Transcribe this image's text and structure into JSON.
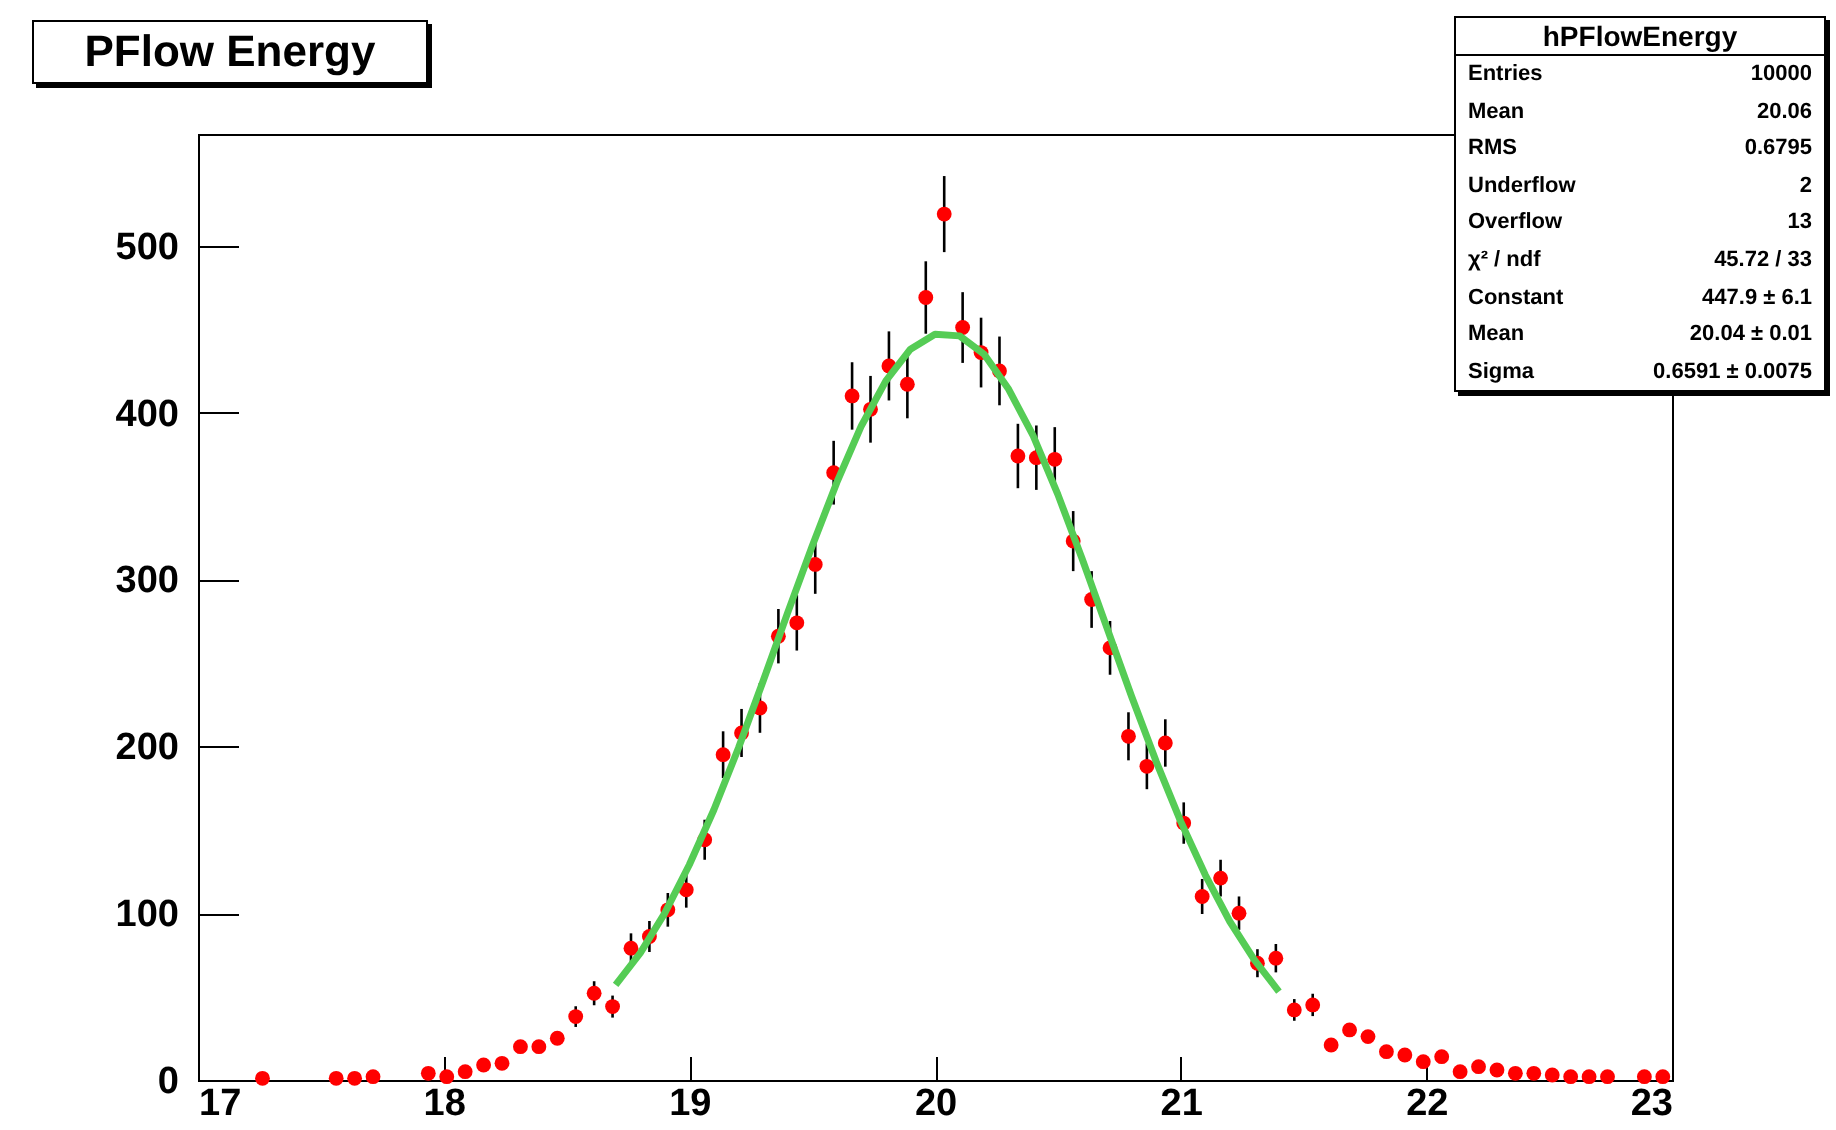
{
  "chart_data": {
    "type": "scatter",
    "title": "PFlow Energy",
    "annotations": [
      "hPFlowEnergy",
      "Entries",
      "10000",
      "Mean",
      "20.06",
      "RMS",
      "0.6795",
      "Underflow",
      "2",
      "Overflow",
      "13",
      "χ² / ndf",
      "45.72 / 33",
      "Constant",
      "447.9 ± 6.1",
      "Mean",
      "20.04 ± 0.01",
      "Sigma",
      "0.6591 ± 0.0075"
    ],
    "xlim": [
      17,
      23
    ],
    "xticks": [
      17,
      18,
      19,
      20,
      21,
      22,
      23
    ],
    "ylim": [
      0,
      567
    ],
    "yticks": [
      0,
      100,
      200,
      300,
      400,
      500
    ],
    "grid": false,
    "marker": "circle",
    "series": [
      {
        "color": "#ff0000",
        "x": [
          17.2625,
          17.5625,
          17.6375,
          17.7125,
          17.9375,
          18.0125,
          18.0875,
          18.1625,
          18.2375,
          18.3125,
          18.3875,
          18.4625,
          18.5375,
          18.6125,
          18.6875,
          18.7625,
          18.8375,
          18.9125,
          18.9875,
          19.0625,
          19.1375,
          19.2125,
          19.2875,
          19.3625,
          19.4375,
          19.5125,
          19.5875,
          19.6625,
          19.7375,
          19.8125,
          19.8875,
          19.9625,
          20.0375,
          20.1125,
          20.1875,
          20.2625,
          20.3375,
          20.4125,
          20.4875,
          20.5625,
          20.6375,
          20.7125,
          20.7875,
          20.8625,
          20.9375,
          21.0125,
          21.0875,
          21.1625,
          21.2375,
          21.3125,
          21.3875,
          21.4625,
          21.5375,
          21.6125,
          21.6875,
          21.7625,
          21.8375,
          21.9125,
          21.9875,
          22.0625,
          22.1375,
          22.2125,
          22.2875,
          22.3625,
          22.4375,
          22.5125,
          22.5875,
          22.6625,
          22.7375,
          22.8875,
          22.9625
        ],
        "values": [
          1,
          1,
          1,
          2,
          4,
          2,
          5,
          9,
          10,
          20,
          20,
          25,
          38,
          52,
          44,
          79,
          86,
          102,
          114,
          144,
          195,
          208,
          223,
          266,
          274,
          309,
          364,
          410,
          402,
          428,
          417,
          469,
          519,
          451,
          436,
          425,
          374,
          373,
          372,
          323,
          288,
          259,
          206,
          188,
          202,
          154,
          110,
          121,
          100,
          70,
          73,
          42,
          45,
          21,
          30,
          26,
          17,
          15,
          11,
          14,
          5,
          8,
          6,
          4,
          4,
          3,
          2,
          2,
          2,
          2,
          2
        ],
        "errors": [
          null,
          null,
          null,
          null,
          null,
          null,
          null,
          null,
          null,
          null,
          null,
          null,
          6.2,
          7.2,
          6.6,
          8.9,
          9.3,
          10.1,
          10.7,
          12,
          14,
          14.4,
          14.9,
          16.3,
          16.6,
          17.6,
          19.1,
          20.2,
          20,
          20.7,
          20.4,
          21.7,
          22.8,
          21.2,
          20.9,
          20.6,
          19.3,
          19.3,
          19.3,
          18,
          17,
          16.1,
          14.4,
          13.7,
          14.2,
          12.4,
          10.5,
          11,
          10,
          8.4,
          8.5,
          6.5,
          6.7,
          null,
          null,
          null,
          null,
          null,
          null,
          null,
          null,
          null,
          null,
          null,
          null,
          null,
          null,
          null,
          null,
          null,
          null
        ]
      },
      {
        "type": "line",
        "color": "#55cc55",
        "line_style": "solid",
        "marker": "none",
        "x": [
          18.7,
          18.8,
          18.9,
          19.0,
          19.1,
          19.2,
          19.3,
          19.4,
          19.5,
          19.6,
          19.7,
          19.8,
          19.9,
          20.0,
          20.1,
          20.2,
          20.3,
          20.4,
          20.5,
          20.6,
          20.7,
          20.8,
          20.9,
          21.0,
          21.1,
          21.2,
          21.3,
          21.4
        ],
        "values": [
          57,
          76,
          100,
          129,
          162,
          199,
          239,
          280,
          320,
          358,
          392,
          419,
          438,
          447,
          446,
          435,
          414,
          386,
          351,
          312,
          271,
          230,
          191,
          155,
          123,
          95,
          72,
          53
        ]
      }
    ]
  }
}
